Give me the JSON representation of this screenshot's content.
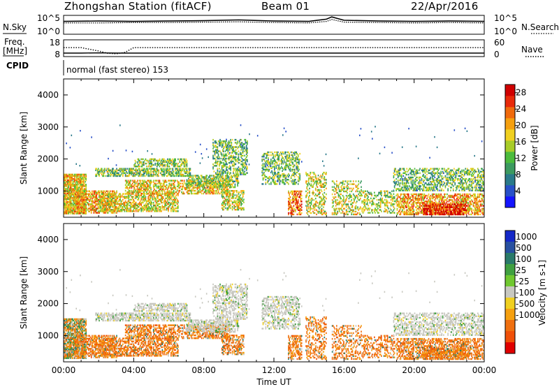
{
  "header": {
    "title": "Zhongshan Station (fitACF)",
    "beam": "Beam 01",
    "date": "22/Apr/2016"
  },
  "left_labels": {
    "nsky": "N.Sky",
    "freq_line1": "Freq.",
    "freq_line2": "[MHz]",
    "cpid": "CPID"
  },
  "right_labels": {
    "nsearch": "N.Search",
    "nave": "Nave"
  },
  "cpid_text": "normal (fast stereo) 153",
  "chart_data": [
    {
      "type": "line",
      "name": "noise-panel",
      "left_ticks": [
        "10^5",
        "10^0"
      ],
      "right_ticks": [
        "10^5",
        "10^0"
      ],
      "series": [
        {
          "name": "N.Sky",
          "x": [
            0,
            2,
            4,
            6,
            8,
            10,
            12,
            14,
            15,
            15.3,
            16,
            18,
            20,
            22,
            24
          ],
          "y": [
            3.4,
            3.5,
            3.4,
            3.5,
            3.6,
            3.8,
            3.5,
            3.4,
            4.0,
            4.6,
            3.7,
            3.5,
            3.4,
            3.5,
            3.4
          ]
        },
        {
          "name": "N.Search",
          "x": [
            0,
            2,
            4,
            6,
            8,
            10,
            12,
            14,
            15,
            15.3,
            16,
            18,
            20,
            22,
            24
          ],
          "y": [
            3.0,
            3.0,
            3.1,
            3.1,
            3.2,
            3.3,
            3.1,
            3.0,
            3.4,
            3.9,
            3.2,
            3.1,
            3.0,
            3.1,
            3.0
          ]
        }
      ]
    },
    {
      "type": "line",
      "name": "freq-nave-panel",
      "left_ticks": [
        18,
        8
      ],
      "right_ticks": [
        60,
        0
      ],
      "series": [
        {
          "name": "Freq.",
          "x": [
            0,
            1,
            2,
            3,
            4,
            6,
            8,
            10,
            12,
            14,
            16,
            18,
            20,
            22,
            24
          ],
          "y": [
            10.1,
            10.1,
            10.2,
            10.1,
            10.1,
            10.1,
            10.1,
            10.1,
            10.1,
            10.1,
            10.1,
            10.1,
            10.1,
            10.1,
            10.1
          ]
        },
        {
          "name": "Nave",
          "x": [
            0,
            1,
            2,
            2.5,
            3,
            3.5,
            4,
            6,
            8,
            12,
            16,
            20,
            24
          ],
          "y": [
            32,
            32,
            20,
            12,
            10,
            15,
            32,
            32,
            32,
            32,
            32,
            32,
            32
          ]
        }
      ]
    },
    {
      "type": "heatmap",
      "name": "power",
      "ylabel": "Slant Range [km]",
      "xlim": [
        0,
        24
      ],
      "ylim": [
        180,
        4500
      ],
      "yticks": [
        1000,
        2000,
        3000,
        4000
      ],
      "colorbar_label": "Power [dB]",
      "colorbar_ticks": [
        4,
        8,
        12,
        16,
        20,
        24,
        28
      ],
      "colorbar_range": [
        0,
        30
      ],
      "colors": [
        "#1414ff",
        "#2850c8",
        "#2a7a8a",
        "#3c9a60",
        "#4cbb3c",
        "#a8cc28",
        "#f0d020",
        "#f5a010",
        "#f06a0c",
        "#e82a0a",
        "#d00000"
      ]
    },
    {
      "type": "heatmap",
      "name": "velocity",
      "ylabel": "Slant Range [km]",
      "xlabel": "Time UT",
      "xlim": [
        0,
        24
      ],
      "ylim": [
        180,
        4500
      ],
      "yticks": [
        1000,
        2000,
        3000,
        4000
      ],
      "xticks": [
        "00:00",
        "04:00",
        "08:00",
        "12:00",
        "16:00",
        "20:00",
        "00:00"
      ],
      "colorbar_label": "Velocity [m s-1]",
      "colorbar_ticks": [
        "1000",
        "500",
        "100",
        "25",
        "-25",
        "-100",
        "-500",
        "-1000"
      ],
      "colors": [
        "#1428c8",
        "#2850a0",
        "#2a7a6a",
        "#40a040",
        "#70c830",
        "#c8c8c0",
        "#f0d020",
        "#f5a010",
        "#f07010",
        "#f05008",
        "#e00000"
      ]
    }
  ],
  "echo_regions": [
    {
      "t0": 0.0,
      "t1": 1.3,
      "r0": 280,
      "r1": 1500,
      "p": 0.8,
      "pw": 18,
      "vel": "mixed"
    },
    {
      "t0": 0.6,
      "t1": 3.0,
      "r0": 300,
      "r1": 1000,
      "p": 0.6,
      "pw": 20,
      "vel": "neg"
    },
    {
      "t0": 2.0,
      "t1": 6.5,
      "r0": 350,
      "r1": 900,
      "p": 0.55,
      "pw": 17,
      "vel": "neg"
    },
    {
      "t0": 1.8,
      "t1": 7.2,
      "r0": 1450,
      "r1": 1700,
      "p": 0.6,
      "pw": 13,
      "vel": "zero"
    },
    {
      "t0": 4.0,
      "t1": 7.0,
      "r0": 1750,
      "r1": 2000,
      "p": 0.5,
      "pw": 14,
      "vel": "zero"
    },
    {
      "t0": 3.5,
      "t1": 9.5,
      "r0": 900,
      "r1": 1350,
      "p": 0.55,
      "pw": 18,
      "vel": "neg"
    },
    {
      "t0": 7.0,
      "t1": 10.0,
      "r0": 1100,
      "r1": 1500,
      "p": 0.55,
      "pw": 14,
      "vel": "zero"
    },
    {
      "t0": 8.5,
      "t1": 10.5,
      "r0": 1500,
      "r1": 2600,
      "p": 0.45,
      "pw": 12,
      "vel": "zero"
    },
    {
      "t0": 9.0,
      "t1": 10.3,
      "r0": 400,
      "r1": 1000,
      "p": 0.45,
      "pw": 16,
      "vel": "neg"
    },
    {
      "t0": 11.3,
      "t1": 13.5,
      "r0": 1200,
      "r1": 2200,
      "p": 0.45,
      "pw": 12,
      "vel": "zero"
    },
    {
      "t0": 12.8,
      "t1": 13.6,
      "r0": 250,
      "r1": 1000,
      "p": 0.6,
      "pw": 22,
      "vel": "neg"
    },
    {
      "t0": 13.8,
      "t1": 15.0,
      "r0": 250,
      "r1": 1600,
      "p": 0.35,
      "pw": 16,
      "vel": "neg"
    },
    {
      "t0": 15.3,
      "t1": 17.0,
      "r0": 250,
      "r1": 1300,
      "p": 0.35,
      "pw": 16,
      "vel": "neg"
    },
    {
      "t0": 17.0,
      "t1": 19.0,
      "r0": 300,
      "r1": 1000,
      "p": 0.35,
      "pw": 15,
      "vel": "neg"
    },
    {
      "t0": 18.8,
      "t1": 24.0,
      "r0": 1000,
      "r1": 1700,
      "p": 0.45,
      "pw": 12,
      "vel": "zero"
    },
    {
      "t0": 19.0,
      "t1": 24.0,
      "r0": 250,
      "r1": 900,
      "p": 0.6,
      "pw": 20,
      "vel": "neg"
    },
    {
      "t0": 20.5,
      "t1": 23.0,
      "r0": 250,
      "r1": 600,
      "p": 0.7,
      "pw": 27,
      "vel": "neg"
    }
  ]
}
